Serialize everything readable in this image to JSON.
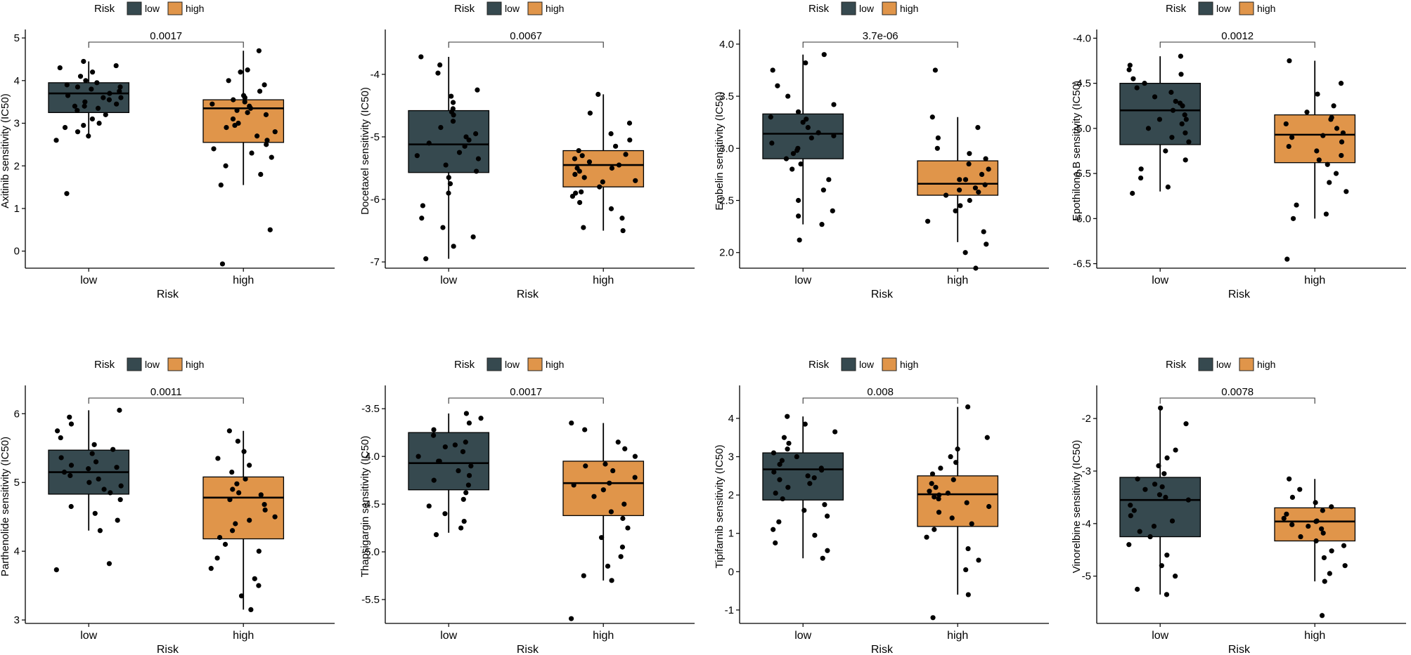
{
  "colors": {
    "low": "#36494f",
    "high": "#e0954a",
    "axis": "#000000",
    "dot": "#000000"
  },
  "legend": {
    "title": "Risk",
    "labels": [
      "low",
      "high"
    ]
  },
  "chart_data": [
    {
      "type": "box",
      "ylabel": "Axitinib sensitivity (IC50)",
      "xlabel": "Risk",
      "categories": [
        "low",
        "high"
      ],
      "pvalue": "0.0017",
      "yticks": [
        0,
        1,
        2,
        3,
        4,
        5
      ],
      "ylim": [
        -0.4,
        5.1
      ],
      "low": {
        "q1": 3.25,
        "median": 3.7,
        "q3": 3.95,
        "whisker_low": 2.65,
        "whisker_high": 4.45,
        "points": [
          4.35,
          4.3,
          4.2,
          4.1,
          4.0,
          3.95,
          3.9,
          3.85,
          3.8,
          3.75,
          3.7,
          3.65,
          3.6,
          3.55,
          3.5,
          3.45,
          3.4,
          3.35,
          3.3,
          3.2,
          3.1,
          3.0,
          2.95,
          2.9,
          2.8,
          2.7,
          2.6,
          1.35,
          4.45,
          3.85,
          3.6,
          3.4
        ]
      },
      "high": {
        "q1": 2.55,
        "median": 3.35,
        "q3": 3.55,
        "whisker_low": 1.55,
        "whisker_high": 4.7,
        "points": [
          4.7,
          4.25,
          4.2,
          4.0,
          3.9,
          3.75,
          3.65,
          3.6,
          3.5,
          3.45,
          3.4,
          3.35,
          3.3,
          3.2,
          3.1,
          3.0,
          2.9,
          2.8,
          2.7,
          2.6,
          2.5,
          2.4,
          2.3,
          2.2,
          2.0,
          1.8,
          1.55,
          0.5,
          -0.3,
          3.55,
          3.25,
          2.95
        ]
      }
    },
    {
      "type": "box",
      "ylabel": "Docetaxel sensitivity (IC50)",
      "xlabel": "Risk",
      "categories": [
        "low",
        "high"
      ],
      "pvalue": "0.0067",
      "yticks": [
        -7,
        -6,
        -5,
        -4
      ],
      "ylim": [
        -7.1,
        -3.35
      ],
      "low": {
        "q1": -5.57,
        "median": -5.12,
        "q3": -4.58,
        "whisker_low": -6.95,
        "whisker_high": -3.72,
        "points": [
          -3.72,
          -3.85,
          -3.98,
          -4.25,
          -4.35,
          -4.45,
          -4.55,
          -4.65,
          -4.75,
          -4.85,
          -4.95,
          -5.05,
          -5.1,
          -5.15,
          -5.25,
          -5.35,
          -5.45,
          -5.55,
          -5.65,
          -5.75,
          -5.9,
          -6.1,
          -6.3,
          -6.45,
          -6.6,
          -6.75,
          -6.95,
          -4.6,
          -5.0,
          -5.3
        ]
      },
      "high": {
        "q1": -5.8,
        "median": -5.45,
        "q3": -5.22,
        "whisker_low": -6.5,
        "whisker_high": -4.32,
        "points": [
          -4.32,
          -4.62,
          -4.78,
          -4.95,
          -5.05,
          -5.15,
          -5.22,
          -5.28,
          -5.35,
          -5.4,
          -5.45,
          -5.5,
          -5.55,
          -5.6,
          -5.65,
          -5.72,
          -5.8,
          -5.88,
          -5.95,
          -6.05,
          -6.15,
          -6.3,
          -6.45,
          -5.3,
          -5.5,
          -5.7,
          -5.9,
          -6.5
        ]
      }
    },
    {
      "type": "box",
      "ylabel": "Embelin sensitivity (IC50)",
      "xlabel": "Risk",
      "categories": [
        "low",
        "high"
      ],
      "pvalue": "3.7e-06",
      "yticks": [
        2.0,
        2.5,
        3.0,
        3.5,
        4.0
      ],
      "ylim": [
        1.85,
        4.1
      ],
      "low": {
        "q1": 2.9,
        "median": 3.14,
        "q3": 3.33,
        "whisker_low": 2.27,
        "whisker_high": 3.9,
        "points": [
          3.9,
          3.82,
          3.75,
          3.6,
          3.5,
          3.42,
          3.35,
          3.3,
          3.25,
          3.2,
          3.15,
          3.1,
          3.05,
          3.0,
          2.95,
          2.9,
          2.85,
          2.8,
          2.7,
          2.6,
          2.5,
          2.4,
          2.35,
          2.27,
          2.12,
          3.12,
          2.98,
          3.28
        ]
      },
      "high": {
        "q1": 2.55,
        "median": 2.66,
        "q3": 2.88,
        "whisker_low": 2.1,
        "whisker_high": 3.3,
        "points": [
          3.75,
          3.3,
          3.2,
          3.1,
          3.0,
          2.95,
          2.9,
          2.85,
          2.8,
          2.75,
          2.7,
          2.65,
          2.6,
          2.55,
          2.5,
          2.45,
          2.4,
          2.3,
          2.2,
          2.08,
          2.0,
          1.85,
          2.7,
          2.62,
          2.58
        ]
      }
    },
    {
      "type": "box",
      "ylabel": "Epothilone.B sensitivity (IC50)",
      "xlabel": "Risk",
      "categories": [
        "low",
        "high"
      ],
      "pvalue": "0.0012",
      "yticks": [
        -6.5,
        -6.0,
        -5.5,
        -5.0,
        -4.5,
        -4.0
      ],
      "ylim": [
        -6.55,
        -3.95
      ],
      "low": {
        "q1": -5.18,
        "median": -4.8,
        "q3": -4.5,
        "whisker_low": -5.7,
        "whisker_high": -4.2,
        "points": [
          -4.2,
          -4.3,
          -4.35,
          -4.4,
          -4.45,
          -4.5,
          -4.55,
          -4.6,
          -4.65,
          -4.7,
          -4.75,
          -4.8,
          -4.85,
          -4.9,
          -4.95,
          -5.0,
          -5.05,
          -5.1,
          -5.15,
          -5.25,
          -5.35,
          -5.45,
          -5.55,
          -5.65,
          -5.72,
          -4.9,
          -4.72
        ]
      },
      "high": {
        "q1": -5.38,
        "median": -5.07,
        "q3": -4.85,
        "whisker_low": -6.0,
        "whisker_high": -4.25,
        "points": [
          -4.25,
          -4.5,
          -4.62,
          -4.75,
          -4.82,
          -4.9,
          -4.95,
          -5.0,
          -5.05,
          -5.1,
          -5.15,
          -5.2,
          -5.25,
          -5.3,
          -5.35,
          -5.4,
          -5.5,
          -5.6,
          -5.7,
          -5.85,
          -5.95,
          -6.0,
          -6.45,
          -5.08,
          -4.88
        ]
      }
    },
    {
      "type": "box",
      "ylabel": "Parthenolide sensitivity (IC50)",
      "xlabel": "Risk",
      "categories": [
        "low",
        "high"
      ],
      "pvalue": "0.0011",
      "yticks": [
        3,
        4,
        5,
        6
      ],
      "ylim": [
        2.95,
        6.35
      ],
      "low": {
        "q1": 4.83,
        "median": 5.15,
        "q3": 5.47,
        "whisker_low": 4.3,
        "whisker_high": 6.05,
        "points": [
          6.05,
          5.95,
          5.85,
          5.75,
          5.65,
          5.55,
          5.48,
          5.42,
          5.36,
          5.3,
          5.25,
          5.2,
          5.15,
          5.1,
          5.05,
          5.0,
          4.95,
          4.9,
          4.85,
          4.75,
          4.65,
          4.55,
          4.45,
          4.3,
          3.82,
          3.73,
          5.22
        ]
      },
      "high": {
        "q1": 4.18,
        "median": 4.78,
        "q3": 5.08,
        "whisker_low": 3.15,
        "whisker_high": 5.75,
        "points": [
          5.75,
          5.6,
          5.45,
          5.35,
          5.25,
          5.15,
          5.05,
          4.98,
          4.9,
          4.82,
          4.75,
          4.68,
          4.6,
          4.5,
          4.4,
          4.3,
          4.2,
          4.1,
          4.0,
          3.9,
          3.75,
          3.6,
          3.5,
          3.35,
          3.15,
          4.85,
          4.45
        ]
      }
    },
    {
      "type": "box",
      "ylabel": "Thapsigargin sensitivity (IC50)",
      "xlabel": "Risk",
      "categories": [
        "low",
        "high"
      ],
      "pvalue": "0.0017",
      "yticks": [
        -5.5,
        -5.0,
        -4.5,
        -4.0,
        -3.5
      ],
      "ylim": [
        -5.75,
        -3.3
      ],
      "low": {
        "q1": -4.35,
        "median": -4.07,
        "q3": -3.75,
        "whisker_low": -4.8,
        "whisker_high": -3.55,
        "points": [
          -3.55,
          -3.6,
          -3.65,
          -3.72,
          -3.78,
          -3.85,
          -3.9,
          -3.95,
          -4.0,
          -4.05,
          -4.1,
          -4.15,
          -4.2,
          -4.25,
          -4.3,
          -4.38,
          -4.45,
          -4.52,
          -4.6,
          -4.68,
          -4.75,
          -4.82,
          -4.05,
          -3.88
        ]
      },
      "high": {
        "q1": -4.62,
        "median": -4.28,
        "q3": -4.05,
        "whisker_low": -5.3,
        "whisker_high": -3.65,
        "points": [
          -3.65,
          -3.72,
          -3.85,
          -3.92,
          -4.0,
          -4.08,
          -4.15,
          -4.22,
          -4.28,
          -4.35,
          -4.42,
          -4.5,
          -4.58,
          -4.65,
          -4.75,
          -4.85,
          -4.95,
          -5.05,
          -5.15,
          -5.25,
          -5.3,
          -5.7,
          -4.3,
          -4.1
        ]
      }
    },
    {
      "type": "box",
      "ylabel": "Tipifarnib sensitivity (IC50)",
      "xlabel": "Risk",
      "categories": [
        "low",
        "high"
      ],
      "pvalue": "0.008",
      "yticks": [
        -1,
        0,
        1,
        2,
        3,
        4
      ],
      "ylim": [
        -1.35,
        4.75
      ],
      "low": {
        "q1": 1.87,
        "median": 2.67,
        "q3": 3.1,
        "whisker_low": 0.35,
        "whisker_high": 4.05,
        "points": [
          4.05,
          3.85,
          3.65,
          3.5,
          3.35,
          3.2,
          3.1,
          3.0,
          2.9,
          2.8,
          2.7,
          2.6,
          2.5,
          2.4,
          2.3,
          2.2,
          2.05,
          1.9,
          1.75,
          1.6,
          1.45,
          1.3,
          1.1,
          0.95,
          0.75,
          0.55,
          0.35,
          2.65,
          2.45
        ]
      },
      "high": {
        "q1": 1.18,
        "median": 2.02,
        "q3": 2.5,
        "whisker_low": -0.6,
        "whisker_high": 4.3,
        "points": [
          4.3,
          3.5,
          3.2,
          3.0,
          2.85,
          2.7,
          2.55,
          2.4,
          2.3,
          2.2,
          2.1,
          2.0,
          1.9,
          1.8,
          1.7,
          1.55,
          1.4,
          1.25,
          1.1,
          0.9,
          0.6,
          0.3,
          0.05,
          -0.6,
          -1.2,
          2.05,
          1.95
        ]
      }
    },
    {
      "type": "box",
      "ylabel": "Vinorelbine sensitivity (IC50)",
      "xlabel": "Risk",
      "categories": [
        "low",
        "high"
      ],
      "pvalue": "0.0078",
      "yticks": [
        -5,
        -4,
        -3,
        -2
      ],
      "ylim": [
        -5.9,
        -1.45
      ],
      "low": {
        "q1": -4.25,
        "median": -3.55,
        "q3": -3.12,
        "whisker_low": -5.35,
        "whisker_high": -1.8,
        "points": [
          -1.8,
          -2.1,
          -2.6,
          -2.75,
          -2.9,
          -3.05,
          -3.15,
          -3.25,
          -3.35,
          -3.45,
          -3.55,
          -3.65,
          -3.75,
          -3.85,
          -3.95,
          -4.05,
          -4.15,
          -4.25,
          -4.4,
          -4.6,
          -4.8,
          -5.0,
          -5.25,
          -5.35,
          -3.5,
          -3.3
        ]
      },
      "high": {
        "q1": -4.33,
        "median": -3.96,
        "q3": -3.7,
        "whisker_low": -5.1,
        "whisker_high": -3.15,
        "points": [
          -3.15,
          -3.35,
          -3.5,
          -3.6,
          -3.68,
          -3.75,
          -3.82,
          -3.9,
          -3.96,
          -4.02,
          -4.1,
          -4.18,
          -4.25,
          -4.33,
          -4.42,
          -4.52,
          -4.65,
          -4.8,
          -4.95,
          -5.1,
          -5.75,
          -3.95,
          -4.05
        ]
      }
    }
  ]
}
